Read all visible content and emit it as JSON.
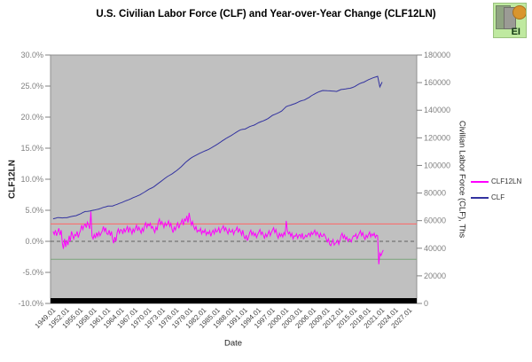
{
  "logo": {
    "text": "EI"
  },
  "legend": {
    "items": [
      {
        "label": "CLF12LN",
        "color": "#ff00ff"
      },
      {
        "label": "CLF",
        "color": "#3333a0"
      }
    ]
  },
  "chart_data": {
    "type": "line",
    "title": "U.S. Civilian Labor Force (CLF) and Year-over-Year Change (CLF12LN)",
    "xlabel": "Date",
    "ylabel_left": "CLF12LN",
    "ylabel_right": "Civilian Labor Force (CLF), Ths",
    "plot_bg": "#c0c0c0",
    "grid": false,
    "legend_position": "right-outside",
    "x_axis": {
      "tick_labels": [
        "1949.01",
        "1952.01",
        "1955.01",
        "1958.01",
        "1961.01",
        "1964.01",
        "1967.01",
        "1970.01",
        "1973.01",
        "1976.01",
        "1979.01",
        "1982.01",
        "1985.01",
        "1988.01",
        "1991.01",
        "1994.01",
        "1997.01",
        "2000.01",
        "2003.01",
        "2006.01",
        "2009.01",
        "2012.01",
        "2015.01",
        "2018.01",
        "2021.01",
        "2024.01",
        "2027.01"
      ]
    },
    "y_left": {
      "min": -10,
      "max": 30,
      "tick_values": [
        30,
        25,
        20,
        15,
        10,
        5,
        0,
        -5,
        -10
      ],
      "tick_labels": [
        "30.0%",
        "25.0%",
        "20.0%",
        "15.0%",
        "10.0%",
        "5.0%",
        "0.0%",
        "-5.0%",
        "-10.0%"
      ]
    },
    "y_right": {
      "min": 0,
      "max": 180000,
      "tick_values": [
        180000,
        160000,
        140000,
        120000,
        100000,
        80000,
        60000,
        40000,
        20000,
        0
      ],
      "tick_labels": [
        "180000",
        "160000",
        "140000",
        "120000",
        "100000",
        "80000",
        "60000",
        "40000",
        "20000",
        "0"
      ]
    },
    "reference_lines": [
      {
        "axis": "left",
        "value": 2.8,
        "color": "#ff6666",
        "style": "solid"
      },
      {
        "axis": "left",
        "value": 0.0,
        "color": "#606060",
        "style": "dashed"
      },
      {
        "axis": "left",
        "value": -2.9,
        "color": "#7ca47c",
        "style": "solid"
      }
    ],
    "series": [
      {
        "name": "CLF12LN",
        "axis": "left",
        "color": "#ff00ff",
        "x_start": 1949.0,
        "x_step": 0.25,
        "values": [
          1.6,
          1.1,
          1.8,
          0.9,
          1.5,
          2.1,
          1.0,
          1.8,
          -0.3,
          -1.2,
          0.4,
          -0.9,
          0.2,
          -0.6,
          0.9,
          0.0,
          1.6,
          1.0,
          0.4,
          1.1,
          0.9,
          1.6,
          0.6,
          1.3,
          1.8,
          2.6,
          1.9,
          2.5,
          2.8,
          2.2,
          3.1,
          2.6,
          2.0,
          4.8,
          0.8,
          0.4,
          1.1,
          0.5,
          1.4,
          0.8,
          1.5,
          0.9,
          1.3,
          1.7,
          2.4,
          1.6,
          2.2,
          1.2,
          1.1,
          1.8,
          0.9,
          1.6,
          0.4,
          -0.3,
          0.7,
          0.0,
          1.4,
          2.0,
          1.3,
          1.9,
          1.8,
          1.2,
          2.1,
          1.5,
          1.9,
          2.4,
          1.4,
          2.2,
          1.8,
          1.2,
          2.0,
          1.5,
          2.1,
          2.6,
          1.7,
          2.3,
          1.8,
          1.3,
          2.1,
          1.6,
          2.5,
          3.0,
          2.2,
          2.8,
          2.5,
          2.9,
          2.1,
          2.4,
          1.9,
          1.4,
          2.3,
          1.8,
          3.1,
          3.6,
          2.7,
          3.2,
          2.8,
          2.2,
          3.0,
          2.5,
          2.8,
          3.3,
          2.4,
          2.9,
          2.0,
          1.4,
          2.3,
          1.8,
          2.5,
          3.0,
          2.1,
          2.7,
          3.0,
          3.5,
          2.6,
          3.6,
          3.3,
          4.1,
          3.0,
          4.6,
          3.4,
          2.6,
          3.2,
          2.4,
          1.9,
          2.4,
          1.5,
          1.8,
          1.6,
          2.1,
          1.2,
          1.7,
          1.4,
          1.9,
          1.0,
          1.5,
          1.2,
          1.7,
          0.8,
          1.4,
          1.8,
          1.2,
          2.0,
          1.5,
          1.7,
          2.2,
          1.3,
          1.9,
          2.1,
          2.5,
          1.7,
          2.2,
          1.7,
          1.2,
          2.0,
          1.5,
          1.5,
          1.9,
          1.1,
          1.7,
          1.8,
          2.3,
          1.4,
          2.0,
          1.6,
          1.0,
          1.8,
          0.8,
          0.4,
          1.0,
          0.1,
          0.7,
          1.4,
          1.8,
          1.0,
          1.5,
          0.9,
          1.3,
          0.6,
          1.1,
          1.5,
          1.9,
          1.1,
          1.5,
          1.0,
          0.5,
          1.2,
          0.7,
          1.2,
          1.7,
          0.9,
          1.4,
          1.8,
          2.2,
          1.4,
          1.9,
          1.0,
          0.5,
          1.3,
          0.8,
          1.2,
          0.7,
          1.4,
          1.0,
          3.3,
          1.7,
          1.2,
          1.5,
          0.8,
          1.3,
          0.4,
          0.9,
          0.8,
          1.2,
          0.5,
          1.0,
          1.1,
          0.6,
          1.3,
          0.4,
          0.6,
          1.0,
          0.7,
          1.1,
          1.3,
          0.8,
          1.5,
          1.1,
          1.4,
          1.8,
          1.0,
          1.5,
          1.1,
          0.6,
          1.3,
          0.8,
          0.8,
          1.2,
          0.9,
          0.4,
          -0.1,
          0.4,
          -0.5,
          -0.7,
          -0.2,
          0.3,
          -0.6,
          -0.3,
          -0.2,
          0.2,
          -0.5,
          0.1,
          0.9,
          1.3,
          0.5,
          1.0,
          0.3,
          0.7,
          0.0,
          0.4,
          0.3,
          -0.1,
          0.6,
          0.9,
          0.8,
          1.2,
          0.4,
          0.9,
          1.3,
          1.7,
          0.9,
          1.4,
          0.7,
          0.3,
          1.0,
          0.6,
          1.1,
          1.5,
          0.7,
          1.2,
          0.9,
          1.3,
          0.6,
          1.0,
          0.9,
          -3.7,
          -1.9,
          -2.3,
          -1.8,
          -1.4
        ]
      },
      {
        "name": "CLF",
        "axis": "right",
        "color": "#3333a0",
        "x_start": 1949.0,
        "x_step": 0.5,
        "values": [
          61300,
          61700,
          62200,
          62100,
          62000,
          62100,
          62100,
          62600,
          63000,
          63300,
          63600,
          64300,
          65000,
          65800,
          66600,
          66700,
          66900,
          67300,
          67600,
          68000,
          68400,
          69000,
          69600,
          70000,
          70500,
          70500,
          70600,
          71200,
          71800,
          72500,
          73100,
          73800,
          74500,
          75100,
          75800,
          76600,
          77300,
          78000,
          78700,
          79700,
          80700,
          81800,
          82800,
          83600,
          84400,
          85700,
          87000,
          88200,
          89400,
          90700,
          91900,
          92900,
          93800,
          95000,
          96200,
          97600,
          99000,
          100600,
          102300,
          103600,
          105000,
          106000,
          106900,
          107800,
          108700,
          109400,
          110200,
          110900,
          111600,
          112500,
          113500,
          114500,
          115500,
          116600,
          117800,
          118800,
          119900,
          120800,
          121700,
          122800,
          123900,
          124900,
          125800,
          126100,
          126300,
          127200,
          128100,
          128700,
          129200,
          130100,
          131100,
          131700,
          132300,
          133100,
          133900,
          135100,
          136300,
          137000,
          137700,
          138500,
          139400,
          141000,
          142600,
          143200,
          143700,
          144300,
          144900,
          145700,
          146500,
          147000,
          147400,
          148400,
          149300,
          150400,
          151400,
          152300,
          153100,
          153700,
          154300,
          154200,
          154100,
          154000,
          153900,
          153800,
          153600,
          154300,
          155000,
          155200,
          155400,
          155700,
          155900,
          156500,
          157100,
          158200,
          159200,
          159800,
          160300,
          161200,
          162100,
          162800,
          163500,
          164000,
          164600,
          156900,
          160400
        ]
      }
    ]
  }
}
